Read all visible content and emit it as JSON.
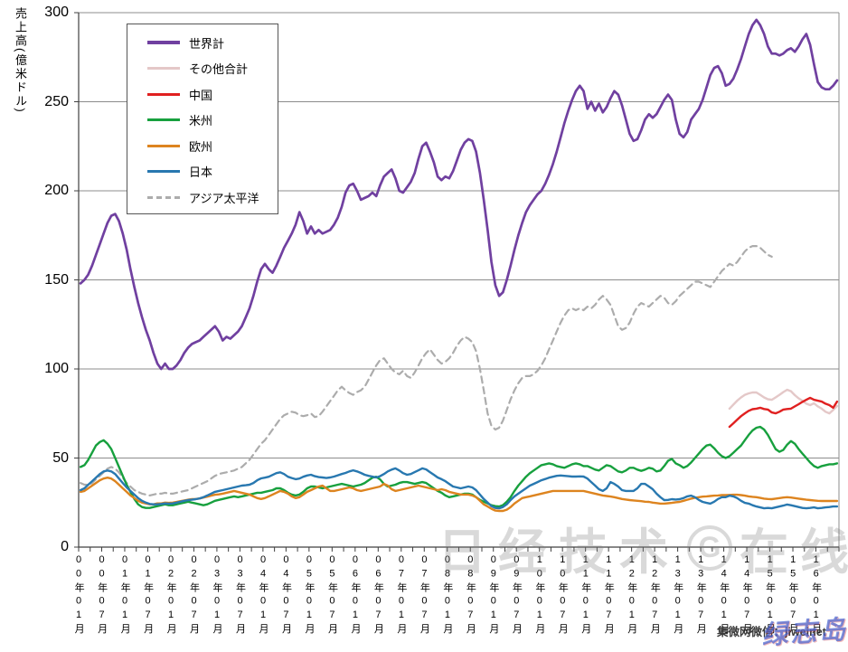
{
  "watermarks": {
    "center_left": "日经技术",
    "center_badge": "G",
    "center_right": "在线",
    "bottom_right": "集微网微信：jiweinet",
    "bottom_right_overlay": "绿志岛"
  },
  "chart_data": {
    "type": "line",
    "ylabel": "売上高(億米ドル)",
    "ylim": [
      0,
      300
    ],
    "yticks": [
      0,
      50,
      100,
      150,
      200,
      250,
      300
    ],
    "x_unit": "month",
    "x_start": "2000-01",
    "x_end": "2016-06",
    "months_total": 198,
    "xtick_interval_months": 6,
    "minor_tick_interval_months": 3,
    "grid": "horizontal-only",
    "legend_position": "top-left-inside",
    "xtick_labels": [
      "00年01月",
      "00年07月",
      "01年01月",
      "01年07月",
      "02年01月",
      "02年07月",
      "03年01月",
      "03年07月",
      "04年01月",
      "04年07月",
      "05年01月",
      "05年07月",
      "06年01月",
      "06年07月",
      "07年01月",
      "07年07月",
      "08年01月",
      "08年07月",
      "09年01月",
      "09年07月",
      "10年01月",
      "10年07月",
      "11年01月",
      "11年07月",
      "12年01月",
      "12年07月",
      "13年01月",
      "13年07月",
      "14年01月",
      "14年07月",
      "15年01月",
      "15年07月",
      "16年01月"
    ],
    "draw_order": [
      "asia_pacific",
      "americas",
      "europe",
      "japan",
      "others_total",
      "china",
      "world"
    ],
    "series": [
      {
        "key": "world",
        "name": "世界計",
        "color": "#7040A0",
        "dash": false,
        "width": 2.7,
        "start_index": 0,
        "values": [
          148,
          150,
          153,
          158,
          164,
          170,
          176,
          182,
          186,
          187,
          183,
          176,
          167,
          156,
          146,
          137,
          129,
          122,
          116,
          109,
          103,
          100,
          103,
          100,
          100,
          102,
          105,
          109,
          112,
          114,
          115,
          116,
          118,
          120,
          122,
          124,
          121,
          116,
          118,
          117,
          119,
          121,
          124,
          129,
          134,
          141,
          149,
          156,
          159,
          156,
          154,
          158,
          163,
          168,
          172,
          176,
          181,
          188,
          183,
          176,
          180,
          176,
          178,
          176,
          177,
          178,
          181,
          185,
          191,
          199,
          203,
          204,
          200,
          195,
          196,
          197,
          199,
          197,
          203,
          208,
          210,
          212,
          207,
          200,
          199,
          202,
          205,
          210,
          218,
          225,
          227,
          222,
          216,
          208,
          206,
          208,
          207,
          211,
          217,
          223,
          227,
          229,
          228,
          222,
          210,
          195,
          178,
          160,
          147,
          141,
          143,
          150,
          158,
          167,
          175,
          182,
          188,
          192,
          195,
          198,
          200,
          204,
          209,
          215,
          222,
          230,
          238,
          245,
          251,
          256,
          259,
          256,
          246,
          250,
          245,
          249,
          244,
          247,
          252,
          256,
          254,
          248,
          240,
          232,
          228,
          229,
          234,
          240,
          243,
          241,
          243,
          247,
          251,
          254,
          251,
          240,
          232,
          230,
          233,
          240,
          243,
          246,
          251,
          258,
          265,
          269,
          270,
          266,
          259,
          260,
          263,
          268,
          274,
          281,
          288,
          293,
          296,
          293,
          288,
          281,
          277,
          277,
          276,
          277,
          279,
          280,
          278,
          281,
          285,
          288,
          282,
          271,
          261,
          258,
          257,
          257,
          259,
          262
        ]
      },
      {
        "key": "others_total",
        "name": "その他合計",
        "color": "#E4C8C8",
        "dash": false,
        "width": 2.4,
        "start_index": 169,
        "values": [
          77.7,
          80,
          82.2,
          84,
          85.5,
          86.3,
          86.8,
          86.8,
          85.5,
          84,
          83,
          82.7,
          84,
          85.5,
          87,
          88.3,
          87.5,
          85.3,
          83.5,
          82.2,
          80.5,
          79.7,
          80.7,
          79,
          77.7,
          76,
          75.1,
          77,
          79.2
        ]
      },
      {
        "key": "china",
        "name": "中国",
        "color": "#E02020",
        "dash": false,
        "width": 2.4,
        "start_index": 169,
        "values": [
          67.5,
          69.5,
          71.5,
          73.5,
          75.1,
          76.5,
          77.4,
          77.7,
          78.2,
          77.5,
          77.2,
          75.6,
          75.1,
          76,
          77.2,
          77.5,
          77.7,
          79,
          80.2,
          81.5,
          82.7,
          83.8,
          82.7,
          82.2,
          81.7,
          80.5,
          79.7,
          78.2,
          81.7
        ]
      },
      {
        "key": "americas",
        "name": "米州",
        "color": "#17A03E",
        "dash": false,
        "width": 2.4,
        "start_index": 0,
        "values": [
          45,
          46,
          49,
          53,
          57,
          59,
          60,
          58,
          55,
          50,
          45,
          40,
          35,
          31,
          27,
          24,
          22.5,
          22,
          22,
          22.5,
          23,
          23.5,
          24,
          23.5,
          23.5,
          24,
          24.5,
          25,
          25.5,
          25,
          24.5,
          24,
          23.5,
          24,
          25,
          26,
          26.5,
          27,
          27.5,
          28,
          28.5,
          28,
          28.5,
          29,
          29.5,
          30,
          30.5,
          30.5,
          31,
          31.5,
          32,
          33,
          33,
          32,
          30.5,
          29.5,
          29,
          29.5,
          31,
          33,
          34,
          34,
          33.5,
          33,
          33.5,
          34,
          34.5,
          35,
          35.5,
          35,
          34.5,
          34,
          34.5,
          35,
          36,
          37.5,
          39,
          39.5,
          38,
          35.5,
          34,
          34.5,
          35,
          36,
          36.5,
          36.5,
          36,
          35.5,
          36,
          36.5,
          36,
          34.5,
          33,
          31.5,
          30.5,
          29,
          28,
          28.5,
          29,
          29.5,
          30,
          30,
          29.5,
          28,
          26.5,
          25.5,
          24.5,
          23.5,
          23,
          22.8,
          23.5,
          25.5,
          28,
          31.5,
          34.5,
          37,
          39.5,
          41.5,
          43,
          44.5,
          46,
          46.5,
          47,
          46.5,
          45.5,
          45,
          44.5,
          45.5,
          46.5,
          47,
          46.5,
          45.5,
          45.5,
          44.5,
          43.5,
          43,
          44.5,
          46,
          45.5,
          44,
          42.5,
          42,
          43,
          44.5,
          44.5,
          43.5,
          42.8,
          43.5,
          44.5,
          44,
          42.5,
          43,
          45.5,
          48.5,
          49.5,
          47,
          46,
          44.5,
          45.5,
          47.5,
          50,
          52.5,
          55,
          57,
          57.5,
          55.5,
          53,
          51,
          50,
          51,
          53,
          55,
          57,
          60,
          63,
          65.5,
          67,
          67.5,
          66,
          63,
          59,
          55,
          53.5,
          54.5,
          57.5,
          59.5,
          58,
          55,
          52.5,
          50,
          47.5,
          45.5,
          44.5,
          45.5,
          46,
          46.5,
          46.5,
          47
        ]
      },
      {
        "key": "europe",
        "name": "欧州",
        "color": "#DD841F",
        "dash": false,
        "width": 2.4,
        "start_index": 0,
        "values": [
          31,
          31.5,
          33,
          34.5,
          36,
          37.5,
          38.5,
          39,
          38.5,
          37,
          35,
          33,
          31,
          29,
          27.5,
          26,
          25,
          24.5,
          24,
          24,
          24.5,
          24.5,
          25,
          24.8,
          25,
          25.4,
          25.8,
          26.2,
          26.6,
          26.9,
          27,
          27.3,
          27.8,
          28.3,
          28.9,
          29.4,
          29.6,
          30,
          30.5,
          31,
          31.5,
          31,
          30.5,
          30,
          29.5,
          28.5,
          27.5,
          27,
          27.5,
          28.5,
          29.5,
          30.5,
          31.5,
          31,
          30,
          28.5,
          27.5,
          28,
          29.5,
          31,
          32,
          33,
          34,
          34.5,
          33,
          31.5,
          31.5,
          32,
          32.5,
          33,
          33.5,
          33,
          32,
          31.5,
          32,
          32.5,
          33,
          33.5,
          34,
          35.5,
          34.5,
          32.5,
          31.5,
          32,
          32.5,
          33,
          33.5,
          34,
          34.5,
          34,
          33.5,
          33,
          32.5,
          32,
          32.5,
          32,
          31,
          30.5,
          30,
          29.5,
          29.5,
          29.5,
          29,
          28,
          26,
          24,
          22.8,
          21.5,
          20.5,
          20.3,
          20.3,
          21,
          22.5,
          24.5,
          26,
          27.5,
          28,
          28.5,
          29,
          29.5,
          30,
          30.5,
          31,
          31.5,
          31.5,
          31.5,
          31.5,
          31.5,
          31.5,
          31.5,
          31.5,
          31.5,
          31,
          30.5,
          30,
          29.5,
          29,
          28.7,
          28.4,
          28,
          27.5,
          27,
          26.7,
          26.4,
          26.2,
          26,
          25.8,
          25.5,
          25.4,
          25,
          24.7,
          24.4,
          24.4,
          24.6,
          24.8,
          25.2,
          25.4,
          26,
          26.6,
          27.2,
          27.7,
          28,
          28.3,
          28.5,
          28.7,
          28.9,
          29,
          29.2,
          29.2,
          29.3,
          29.4,
          29.4,
          29.2,
          28.9,
          28.5,
          28.2,
          28,
          27.6,
          27.2,
          27,
          26.9,
          27.2,
          27.5,
          27.8,
          28,
          27.8,
          27.5,
          27.2,
          26.9,
          26.6,
          26.4,
          26.2,
          26,
          25.9,
          25.9,
          25.9,
          25.9,
          25.9
        ]
      },
      {
        "key": "japan",
        "name": "日本",
        "color": "#2878B0",
        "dash": false,
        "width": 2.4,
        "start_index": 0,
        "values": [
          32,
          33,
          35,
          37,
          39,
          41,
          42.5,
          43,
          42.5,
          41,
          38.5,
          36,
          33.5,
          31.5,
          29.5,
          27.5,
          26,
          25,
          24.2,
          24,
          24,
          24.2,
          24.5,
          24.4,
          24.5,
          25,
          25.5,
          26,
          26.4,
          26.6,
          26.9,
          27.3,
          28,
          29,
          30,
          31,
          31.5,
          32,
          32.5,
          33,
          33.5,
          34,
          34.5,
          34.7,
          35,
          36,
          37.5,
          38.6,
          39,
          39.5,
          40.5,
          41.5,
          42,
          41,
          39.5,
          38.8,
          38.1,
          38.5,
          39.5,
          40.2,
          40.6,
          39.8,
          39.3,
          39.1,
          38.8,
          39.1,
          39.6,
          40.3,
          41,
          41.6,
          42.5,
          43.1,
          42.5,
          41.6,
          40.6,
          40,
          39.6,
          39.1,
          39.8,
          41,
          42.5,
          43.5,
          44.2,
          43,
          41.5,
          40.6,
          41,
          42.1,
          43.1,
          44.2,
          43.6,
          42.1,
          40.6,
          39.1,
          38.1,
          37,
          35.5,
          34,
          33.5,
          33,
          33.5,
          34,
          33.5,
          32,
          29.5,
          27,
          25,
          23,
          22,
          21.8,
          22.5,
          24,
          26.4,
          28.5,
          30,
          31.5,
          33,
          34.5,
          35.5,
          36.5,
          37.5,
          38.2,
          39,
          39.5,
          40,
          40.2,
          40,
          39.8,
          39.6,
          39.6,
          39.7,
          39.6,
          38.5,
          36.5,
          34.5,
          32.5,
          31.5,
          33,
          36.5,
          35.5,
          34,
          32,
          31.5,
          31.5,
          31.5,
          33,
          35.5,
          35.5,
          34,
          32.5,
          30,
          28,
          26.4,
          26.5,
          26.9,
          26.7,
          26.9,
          27.5,
          28.5,
          28.9,
          28,
          26.5,
          25.4,
          24.8,
          24.4,
          25.5,
          27,
          28,
          28,
          28.9,
          28.5,
          27.5,
          26,
          24.8,
          24.4,
          23.5,
          22.8,
          22.3,
          21.8,
          22,
          21.8,
          22.3,
          22.8,
          23.3,
          23.9,
          23.5,
          23,
          22.5,
          22,
          21.8,
          22,
          22.3,
          21.8,
          22,
          22.3,
          22.5,
          22.8,
          22.8
        ]
      },
      {
        "key": "asia_pacific",
        "name": "アジア太平洋",
        "color": "#ACACAC",
        "dash": true,
        "width": 2.2,
        "start_index": 0,
        "values": [
          36,
          35,
          35,
          36,
          38,
          40,
          42,
          44,
          45,
          44,
          42,
          39,
          36,
          34,
          32,
          31,
          30,
          29.5,
          29,
          29.5,
          30,
          30,
          30.5,
          30,
          30,
          30.5,
          31,
          31.5,
          32,
          33,
          34,
          35,
          36,
          37,
          38.5,
          40,
          41,
          41.5,
          42,
          42.5,
          43,
          44,
          45,
          47,
          49,
          52,
          55,
          58,
          60,
          63,
          66,
          69,
          72,
          74,
          75,
          76,
          75.5,
          74,
          73.5,
          74,
          75,
          73,
          73.5,
          76,
          79,
          82,
          85,
          88,
          90,
          88,
          86.5,
          85.5,
          87,
          88,
          90,
          94,
          98,
          102,
          105,
          106,
          103,
          100,
          98,
          97,
          99,
          96,
          95,
          98,
          102,
          106,
          109,
          111,
          108,
          105,
          103,
          104,
          106,
          109,
          113,
          116,
          118,
          117,
          115,
          110,
          100,
          88,
          75,
          68,
          66,
          67,
          71,
          77,
          83,
          88,
          92,
          95,
          96,
          96,
          97,
          99,
          102,
          106,
          111,
          116,
          121,
          126,
          130,
          133,
          134,
          133,
          134,
          133,
          135,
          134,
          136,
          139,
          141,
          139,
          136,
          130,
          124,
          122,
          123,
          126,
          131,
          135,
          137,
          136,
          135,
          137,
          139,
          141,
          140,
          137,
          136,
          138,
          141,
          143,
          145,
          147,
          149,
          149,
          148,
          147,
          146,
          149,
          152,
          155,
          157,
          159,
          158,
          160,
          163,
          166,
          168,
          169,
          169,
          168,
          166,
          164,
          163
        ]
      }
    ]
  }
}
